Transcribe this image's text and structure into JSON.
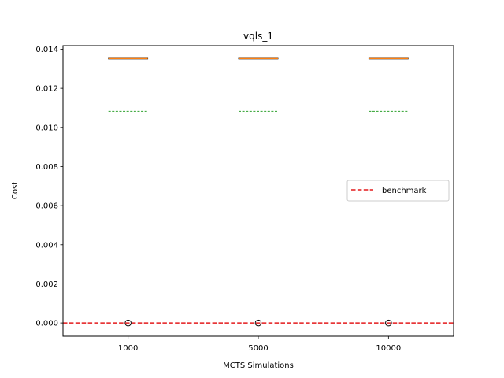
{
  "chart_data": {
    "type": "box",
    "title": "vqls_1",
    "xlabel": "MCTS Simulations",
    "ylabel": "Cost",
    "categories": [
      "1000",
      "5000",
      "10000"
    ],
    "ylim": [
      -0.00068,
      0.01418
    ],
    "yticks": [
      "0.000",
      "0.002",
      "0.004",
      "0.006",
      "0.008",
      "0.010",
      "0.012",
      "0.014"
    ],
    "ytick_values": [
      0.0,
      0.002,
      0.004,
      0.006,
      0.008,
      0.01,
      0.012,
      0.014
    ],
    "boxes": [
      {
        "category": "1000",
        "q1": 0.01352,
        "median": 0.01352,
        "q3": 0.01352,
        "whisker_low": 0.01352,
        "whisker_high": 0.01352,
        "mean": 0.01082,
        "fliers": [
          0.0
        ]
      },
      {
        "category": "5000",
        "q1": 0.01352,
        "median": 0.01352,
        "q3": 0.01352,
        "whisker_low": 0.01352,
        "whisker_high": 0.01352,
        "mean": 0.01082,
        "fliers": [
          0.0
        ]
      },
      {
        "category": "10000",
        "q1": 0.01352,
        "median": 0.01352,
        "q3": 0.01352,
        "whisker_low": 0.01352,
        "whisker_high": 0.01352,
        "mean": 0.01082,
        "fliers": [
          0.0
        ]
      }
    ],
    "reference_lines": [
      {
        "name": "benchmark",
        "y": 0.0,
        "style": "dashed"
      }
    ],
    "legend": {
      "entries": [
        "benchmark"
      ],
      "placement": "center-right"
    },
    "grid": false
  },
  "colors": {
    "box": "#000000",
    "median": "#ff7f0e",
    "mean": "#2ca02c",
    "benchmark": "#e41a1c",
    "axes": "#000000"
  }
}
